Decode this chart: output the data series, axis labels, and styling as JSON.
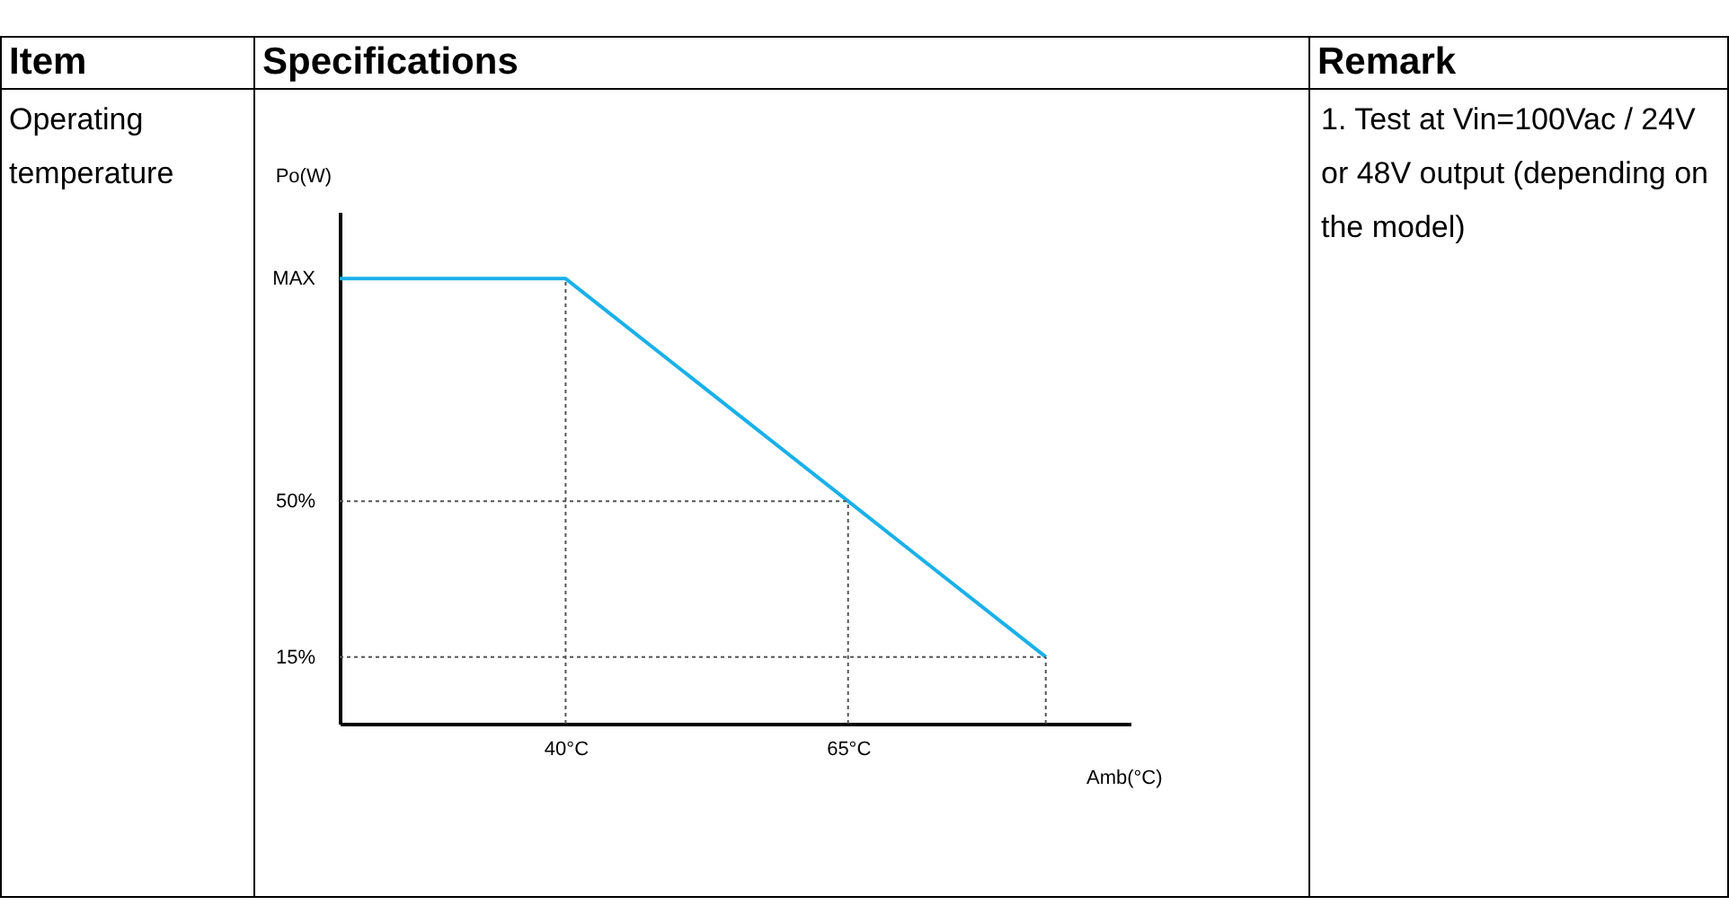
{
  "chart_data": {
    "type": "line",
    "xlabel": "Amb(°C)",
    "ylabel": "Po(W)",
    "x": [
      20,
      40,
      65,
      82.5
    ],
    "series": [
      {
        "color": "#1ab0e8",
        "values": [
          100,
          100,
          50,
          15
        ]
      }
    ],
    "xlim": [
      20,
      90
    ],
    "ylim": [
      0,
      115
    ],
    "xticks": [
      {
        "value": 40,
        "label": "40°C"
      },
      {
        "value": 65,
        "label": "65°C"
      }
    ],
    "yticks": [
      {
        "value": 15,
        "label": "15%"
      },
      {
        "value": 50,
        "label": "50%"
      },
      {
        "value": 100,
        "label": "MAX"
      }
    ],
    "ref_lines": [
      {
        "axis": "x",
        "value": 40,
        "color": "#555555",
        "line_style": "dotted"
      },
      {
        "axis": "x",
        "value": 65,
        "color": "#555555",
        "line_style": "dotted"
      },
      {
        "axis": "x",
        "value": 82.5,
        "color": "#555555",
        "line_style": "dotted"
      },
      {
        "axis": "y",
        "value": 50,
        "color": "#555555",
        "line_style": "dotted"
      },
      {
        "axis": "y",
        "value": 15,
        "color": "#555555",
        "line_style": "dotted"
      }
    ],
    "grid": false,
    "annotations": [
      "Item",
      "Specifications",
      "Remark",
      "Operating temperature",
      "1. Test at Vin=100Vac / 24V or 48V output (depending on the model)"
    ]
  }
}
